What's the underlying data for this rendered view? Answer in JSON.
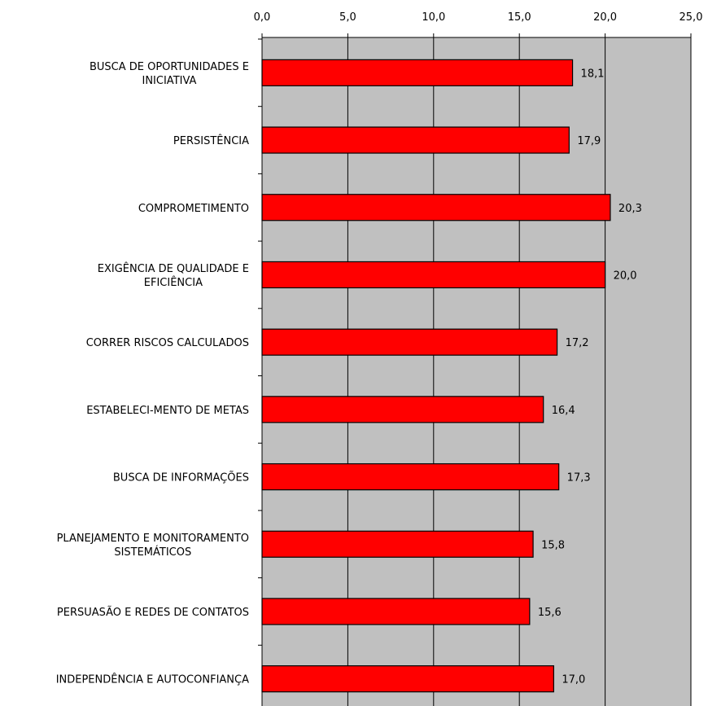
{
  "chart_data": {
    "type": "bar",
    "orientation": "horizontal",
    "categories": [
      [
        "BUSCA DE OPORTUNIDADES E",
        "INICIATIVA"
      ],
      [
        "PERSISTÊNCIA"
      ],
      [
        "COMPROMETIMENTO"
      ],
      [
        "EXIGÊNCIA DE QUALIDADE E",
        "EFICIÊNCIA"
      ],
      [
        "CORRER RISCOS CALCULADOS"
      ],
      [
        "ESTABELECI-MENTO DE METAS"
      ],
      [
        "BUSCA DE INFORMAÇÕES"
      ],
      [
        "PLANEJAMENTO E MONITORAMENTO",
        "SISTEMÁTICOS"
      ],
      [
        "PERSUASÃO E REDES DE CONTATOS"
      ],
      [
        "INDEPENDÊNCIA E AUTOCONFIANÇA"
      ]
    ],
    "values": [
      18.1,
      17.9,
      20.3,
      20.0,
      17.2,
      16.4,
      17.3,
      15.8,
      15.6,
      17.0
    ],
    "value_labels": [
      "18,1",
      "17,9",
      "20,3",
      "20,0",
      "17,2",
      "16,4",
      "17,3",
      "15,8",
      "15,6",
      "17,0"
    ],
    "xlim": [
      0,
      25
    ],
    "ticks": [
      0,
      5,
      10,
      15,
      20,
      25
    ],
    "tick_labels": [
      "0,0",
      "5,0",
      "10,0",
      "15,0",
      "20,0",
      "25,0"
    ],
    "axis_position": "top",
    "grid": true,
    "legend": "none",
    "colors": {
      "bar": "#ff0000",
      "plot_bg": "#c0c0c0",
      "grid": "#000000"
    }
  }
}
